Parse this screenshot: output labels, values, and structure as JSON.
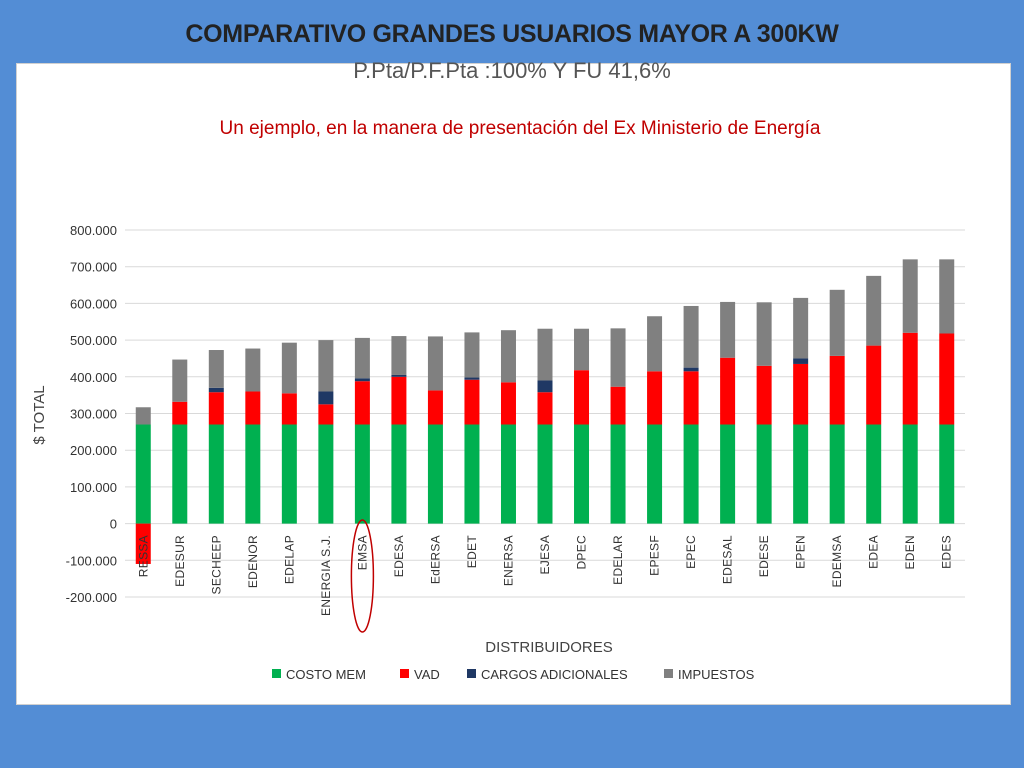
{
  "title": "COMPARATIVO GRANDES USUARIOS MAYOR A 300KW",
  "subtitle": "P.Pta/P.F.Pta :100% Y FU 41,6%",
  "note": "Un ejemplo, en la manera de presentación del Ex Ministerio de Energía",
  "colors": {
    "background": "#538dd5",
    "costo_mem": "#00b050",
    "vad": "#ff0000",
    "cargos": "#1f3864",
    "impuestos": "#808080",
    "highlight": "#c00000"
  },
  "chart_data": {
    "type": "bar",
    "stacked": true,
    "xlabel": "DISTRIBUIDORES",
    "ylabel": "$ TOTAL",
    "ylim": [
      -200000,
      800000
    ],
    "yticks": [
      "800.000",
      "700.000",
      "600.000",
      "500.000",
      "400.000",
      "300.000",
      "200.000",
      "100.000",
      "0",
      "-100.000",
      "-200.000"
    ],
    "ytick_values": [
      800000,
      700000,
      600000,
      500000,
      400000,
      300000,
      200000,
      100000,
      0,
      -100000,
      -200000
    ],
    "grid": true,
    "legend_position": "bottom",
    "highlighted_category": "EMSA",
    "categories": [
      "RESSA",
      "EDESUR",
      "SECHEEP",
      "EDENOR",
      "EDELAP",
      "ENERGIA S.J.",
      "EMSA",
      "EDESA",
      "EdERSA",
      "EDET",
      "ENERSA",
      "EJESA",
      "DPEC",
      "EDELAR",
      "EPESF",
      "EPEC",
      "EDESAL",
      "EDESE",
      "EPEN",
      "EDEMSA",
      "EDEA",
      "EDEN",
      "EDES"
    ],
    "series": [
      {
        "name": "COSTO MEM",
        "color": "#00b050",
        "values": [
          270000,
          270000,
          270000,
          270000,
          270000,
          270000,
          270000,
          270000,
          270000,
          270000,
          270000,
          270000,
          270000,
          270000,
          270000,
          270000,
          270000,
          270000,
          270000,
          270000,
          270000,
          270000,
          270000
        ]
      },
      {
        "name": "VAD",
        "color": "#ff0000",
        "values": [
          -110000,
          62000,
          88000,
          90000,
          85000,
          55000,
          118000,
          130000,
          93000,
          122000,
          115000,
          88000,
          148000,
          103000,
          145000,
          145000,
          182000,
          160000,
          165000,
          187000,
          215000,
          250000,
          248000
        ]
      },
      {
        "name": "CARGOS ADICIONALES",
        "color": "#1f3864",
        "values": [
          0,
          0,
          12000,
          0,
          0,
          35000,
          8000,
          5000,
          0,
          6000,
          0,
          32000,
          0,
          0,
          0,
          10000,
          0,
          0,
          15000,
          0,
          0,
          0,
          0
        ]
      },
      {
        "name": "IMPUESTOS",
        "color": "#808080",
        "values": [
          47000,
          115000,
          103000,
          117000,
          138000,
          140000,
          110000,
          106000,
          147000,
          123000,
          142000,
          141000,
          113000,
          159000,
          150000,
          168000,
          152000,
          173000,
          165000,
          180000,
          190000,
          200000,
          202000
        ]
      }
    ]
  }
}
